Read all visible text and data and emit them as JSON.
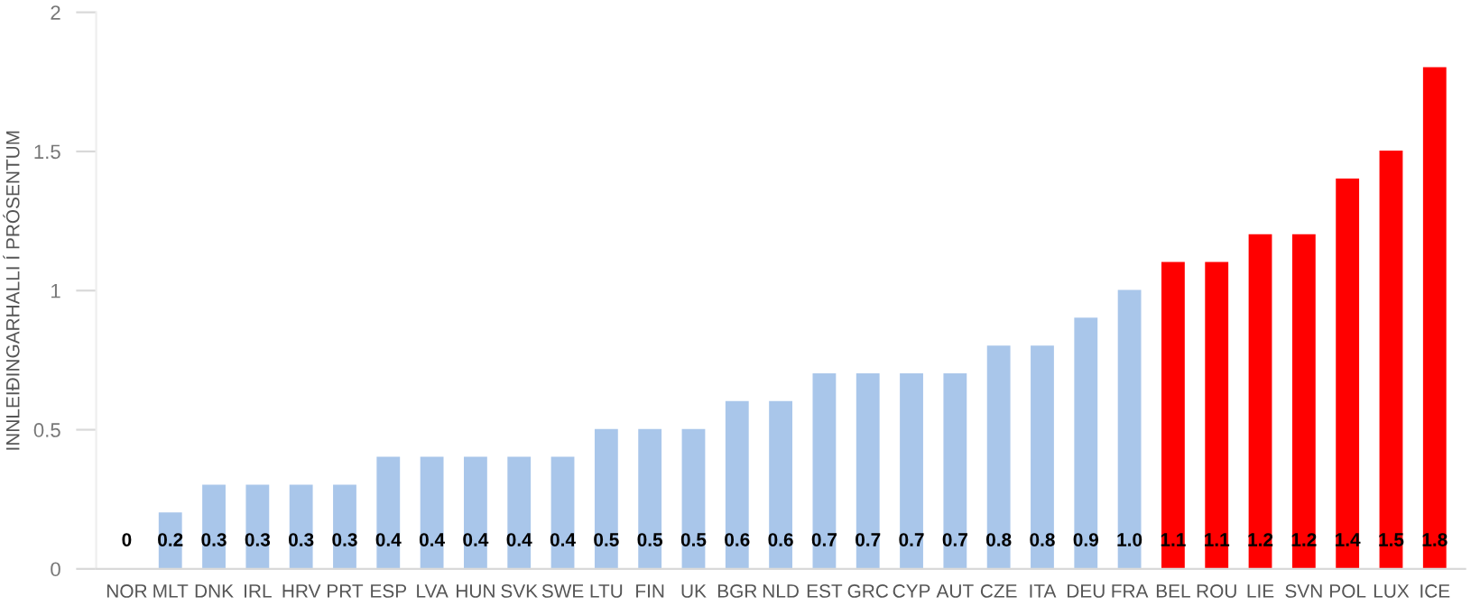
{
  "chart_data": {
    "type": "bar",
    "ylabel": "INNLEIÐINGARHALLI Í PRÓSENTUM",
    "categories": [
      "NOR",
      "MLT",
      "DNK",
      "IRL",
      "HRV",
      "PRT",
      "ESP",
      "LVA",
      "HUN",
      "SVK",
      "SWE",
      "LTU",
      "FIN",
      "UK",
      "BGR",
      "NLD",
      "EST",
      "GRC",
      "CYP",
      "AUT",
      "CZE",
      "ITA",
      "DEU",
      "FRA",
      "BEL",
      "ROU",
      "LIE",
      "SVN",
      "POL",
      "LUX",
      "ICE"
    ],
    "values": [
      0,
      0.2,
      0.3,
      0.3,
      0.3,
      0.3,
      0.4,
      0.4,
      0.4,
      0.4,
      0.4,
      0.5,
      0.5,
      0.5,
      0.6,
      0.6,
      0.7,
      0.7,
      0.7,
      0.7,
      0.8,
      0.8,
      0.9,
      1.0,
      1.1,
      1.1,
      1.2,
      1.2,
      1.4,
      1.5,
      1.8
    ],
    "value_labels": [
      "0",
      "0.2",
      "0.3",
      "0.3",
      "0.3",
      "0.3",
      "0.4",
      "0.4",
      "0.4",
      "0.4",
      "0.4",
      "0.5",
      "0.5",
      "0.5",
      "0.6",
      "0.6",
      "0.7",
      "0.7",
      "0.7",
      "0.7",
      "0.8",
      "0.8",
      "0.9",
      "1.0",
      "1.1",
      "1.1",
      "1.2",
      "1.2",
      "1.4",
      "1.5",
      "1.8"
    ],
    "colors": [
      "#a9c6ea",
      "#a9c6ea",
      "#a9c6ea",
      "#a9c6ea",
      "#a9c6ea",
      "#a9c6ea",
      "#a9c6ea",
      "#a9c6ea",
      "#a9c6ea",
      "#a9c6ea",
      "#a9c6ea",
      "#a9c6ea",
      "#a9c6ea",
      "#a9c6ea",
      "#a9c6ea",
      "#a9c6ea",
      "#a9c6ea",
      "#a9c6ea",
      "#a9c6ea",
      "#a9c6ea",
      "#a9c6ea",
      "#a9c6ea",
      "#a9c6ea",
      "#a9c6ea",
      "#ff0000",
      "#ff0000",
      "#ff0000",
      "#ff0000",
      "#ff0000",
      "#ff0000",
      "#ff0000"
    ],
    "ylim": [
      0,
      2
    ],
    "yticks": [
      0,
      0.5,
      1,
      1.5,
      2
    ],
    "grid": false
  }
}
